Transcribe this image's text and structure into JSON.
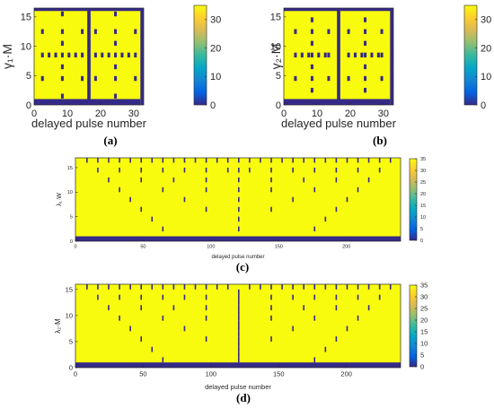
{
  "colors": {
    "low": "#352a87",
    "high": "#f9fb0e",
    "frame": "#262626"
  },
  "colorbar_stops": [
    "#352a87",
    "#0363e1",
    "#1485d4",
    "#06a7c6",
    "#38b99e",
    "#92bf73",
    "#d9ba56",
    "#fcce2e",
    "#f9fb0e"
  ],
  "chart_data": [
    {
      "type": "heatmap",
      "caption": "(a)",
      "xlabel": "delayed pulse number",
      "ylabel": "γ₁·M",
      "xlim": [
        0,
        33
      ],
      "ylim": [
        0,
        16.5
      ],
      "xticks": [
        0,
        10,
        20,
        30
      ],
      "yticks": [
        0,
        5,
        10,
        15
      ],
      "colorbar": {
        "range": [
          0,
          35
        ],
        "ticks": [
          0,
          10,
          20,
          30
        ]
      },
      "grid_size": [
        32,
        16
      ],
      "background_value": 35,
      "mark_value": 0,
      "low_value_columns": [
        16
      ],
      "low_value_rows": [
        0
      ],
      "low_value_cells": [
        [
          2,
          4
        ],
        [
          2,
          8
        ],
        [
          2,
          12
        ],
        [
          4,
          8
        ],
        [
          6,
          8
        ],
        [
          8,
          1
        ],
        [
          8,
          4
        ],
        [
          8,
          6
        ],
        [
          8,
          8
        ],
        [
          8,
          10
        ],
        [
          8,
          12
        ],
        [
          8,
          15
        ],
        [
          10,
          8
        ],
        [
          12,
          8
        ],
        [
          14,
          4
        ],
        [
          14,
          8
        ],
        [
          14,
          12
        ],
        [
          18,
          4
        ],
        [
          18,
          8
        ],
        [
          18,
          12
        ],
        [
          20,
          8
        ],
        [
          22,
          8
        ],
        [
          24,
          1
        ],
        [
          24,
          4
        ],
        [
          24,
          6
        ],
        [
          24,
          8
        ],
        [
          24,
          10
        ],
        [
          24,
          12
        ],
        [
          24,
          15
        ],
        [
          26,
          8
        ],
        [
          28,
          8
        ],
        [
          30,
          4
        ],
        [
          30,
          8
        ],
        [
          30,
          12
        ]
      ]
    },
    {
      "type": "heatmap",
      "caption": "(b)",
      "xlabel": "delayed pulse number",
      "ylabel": "γ₂·M",
      "xlim": [
        0,
        33
      ],
      "ylim": [
        0,
        16.5
      ],
      "xticks": [
        0,
        10,
        20,
        30
      ],
      "yticks": [
        0,
        5,
        10,
        15
      ],
      "colorbar": {
        "range": [
          0,
          35
        ],
        "ticks": [
          0,
          10,
          20,
          30
        ]
      },
      "grid_size": [
        32,
        16
      ],
      "background_value": 35,
      "mark_value": 0,
      "low_value_columns": [
        16
      ],
      "low_value_rows": [
        0
      ],
      "low_value_cells": [
        [
          3,
          4
        ],
        [
          3,
          8
        ],
        [
          3,
          12
        ],
        [
          5,
          8
        ],
        [
          7,
          8
        ],
        [
          8,
          2
        ],
        [
          8,
          4
        ],
        [
          8,
          6
        ],
        [
          8,
          8
        ],
        [
          8,
          10
        ],
        [
          8,
          12
        ],
        [
          8,
          14
        ],
        [
          10,
          8
        ],
        [
          12,
          8
        ],
        [
          13,
          4
        ],
        [
          13,
          8
        ],
        [
          13,
          12
        ],
        [
          19,
          4
        ],
        [
          19,
          8
        ],
        [
          19,
          12
        ],
        [
          21,
          8
        ],
        [
          23,
          8
        ],
        [
          24,
          2
        ],
        [
          24,
          4
        ],
        [
          24,
          6
        ],
        [
          24,
          8
        ],
        [
          24,
          10
        ],
        [
          24,
          12
        ],
        [
          24,
          14
        ],
        [
          26,
          8
        ],
        [
          28,
          8
        ],
        [
          29,
          4
        ],
        [
          29,
          8
        ],
        [
          29,
          12
        ]
      ]
    },
    {
      "type": "heatmap",
      "caption": "(c)",
      "xlabel": "delayed pulse number",
      "ylabel": "λ₁·W",
      "xlim": [
        0,
        240
      ],
      "ylim": [
        0,
        17
      ],
      "xticks": [
        0,
        50,
        100,
        150,
        200
      ],
      "yticks": [
        0,
        5,
        10,
        15
      ],
      "colorbar": {
        "range": [
          0,
          35
        ],
        "ticks": [
          0,
          5,
          10,
          15,
          20,
          25,
          30,
          35
        ]
      },
      "grid_size": [
        240,
        17
      ],
      "background_value": 35,
      "mark_value": 0,
      "low_value_rows": [
        0
      ],
      "low_value_cells": [
        [
          8,
          16
        ],
        [
          16,
          16
        ],
        [
          24,
          16
        ],
        [
          32,
          16
        ],
        [
          40,
          16
        ],
        [
          48,
          16
        ],
        [
          56,
          16
        ],
        [
          64,
          16
        ],
        [
          72,
          16
        ],
        [
          80,
          16
        ],
        [
          88,
          16
        ],
        [
          96,
          16
        ],
        [
          104,
          16
        ],
        [
          112,
          16
        ],
        [
          120,
          16
        ],
        [
          128,
          16
        ],
        [
          136,
          16
        ],
        [
          144,
          16
        ],
        [
          152,
          16
        ],
        [
          160,
          16
        ],
        [
          168,
          16
        ],
        [
          176,
          16
        ],
        [
          184,
          16
        ],
        [
          192,
          16
        ],
        [
          200,
          16
        ],
        [
          208,
          16
        ],
        [
          216,
          16
        ],
        [
          224,
          16
        ],
        [
          232,
          16
        ],
        [
          16,
          14
        ],
        [
          32,
          14
        ],
        [
          48,
          14
        ],
        [
          64,
          14
        ],
        [
          80,
          14
        ],
        [
          96,
          14
        ],
        [
          112,
          14
        ],
        [
          120,
          14
        ],
        [
          128,
          14
        ],
        [
          144,
          14
        ],
        [
          160,
          14
        ],
        [
          176,
          14
        ],
        [
          192,
          14
        ],
        [
          208,
          14
        ],
        [
          224,
          14
        ],
        [
          24,
          12
        ],
        [
          48,
          12
        ],
        [
          72,
          12
        ],
        [
          96,
          12
        ],
        [
          120,
          12
        ],
        [
          144,
          12
        ],
        [
          168,
          12
        ],
        [
          192,
          12
        ],
        [
          216,
          12
        ],
        [
          32,
          10
        ],
        [
          64,
          10
        ],
        [
          96,
          10
        ],
        [
          120,
          10
        ],
        [
          144,
          10
        ],
        [
          176,
          10
        ],
        [
          208,
          10
        ],
        [
          40,
          8
        ],
        [
          80,
          8
        ],
        [
          120,
          8
        ],
        [
          160,
          8
        ],
        [
          200,
          8
        ],
        [
          48,
          6
        ],
        [
          96,
          6
        ],
        [
          120,
          6
        ],
        [
          144,
          6
        ],
        [
          192,
          6
        ],
        [
          56,
          4
        ],
        [
          120,
          4
        ],
        [
          184,
          4
        ],
        [
          64,
          2
        ],
        [
          120,
          2
        ],
        [
          176,
          2
        ]
      ]
    },
    {
      "type": "heatmap",
      "caption": "(d)",
      "xlabel": "delayed pulse number",
      "ylabel": "λ₂·M",
      "xlim": [
        0,
        240
      ],
      "ylim": [
        0,
        16
      ],
      "xticks": [
        0,
        50,
        100,
        150,
        200
      ],
      "yticks": [
        0,
        5,
        10,
        15
      ],
      "colorbar": {
        "range": [
          0,
          35
        ],
        "ticks": [
          0,
          5,
          10,
          15,
          20,
          25,
          30,
          35
        ]
      },
      "grid_size": [
        240,
        16
      ],
      "background_value": 35,
      "mark_value": 0,
      "low_value_rows": [
        0
      ],
      "low_value_cells": [
        [
          8,
          15
        ],
        [
          16,
          15
        ],
        [
          24,
          15
        ],
        [
          32,
          15
        ],
        [
          40,
          15
        ],
        [
          48,
          15
        ],
        [
          56,
          15
        ],
        [
          64,
          15
        ],
        [
          72,
          15
        ],
        [
          80,
          15
        ],
        [
          88,
          15
        ],
        [
          96,
          15
        ],
        [
          104,
          15
        ],
        [
          112,
          15
        ],
        [
          128,
          15
        ],
        [
          136,
          15
        ],
        [
          144,
          15
        ],
        [
          152,
          15
        ],
        [
          160,
          15
        ],
        [
          168,
          15
        ],
        [
          176,
          15
        ],
        [
          184,
          15
        ],
        [
          192,
          15
        ],
        [
          200,
          15
        ],
        [
          208,
          15
        ],
        [
          216,
          15
        ],
        [
          224,
          15
        ],
        [
          232,
          15
        ],
        [
          120,
          14
        ],
        [
          16,
          13
        ],
        [
          32,
          13
        ],
        [
          48,
          13
        ],
        [
          64,
          13
        ],
        [
          80,
          13
        ],
        [
          96,
          13
        ],
        [
          120,
          13
        ],
        [
          144,
          13
        ],
        [
          160,
          13
        ],
        [
          176,
          13
        ],
        [
          192,
          13
        ],
        [
          208,
          13
        ],
        [
          224,
          13
        ],
        [
          120,
          12
        ],
        [
          24,
          11
        ],
        [
          48,
          11
        ],
        [
          72,
          11
        ],
        [
          96,
          11
        ],
        [
          120,
          11
        ],
        [
          144,
          11
        ],
        [
          168,
          11
        ],
        [
          192,
          11
        ],
        [
          216,
          11
        ],
        [
          120,
          10
        ],
        [
          32,
          9
        ],
        [
          64,
          9
        ],
        [
          96,
          9
        ],
        [
          120,
          9
        ],
        [
          144,
          9
        ],
        [
          176,
          9
        ],
        [
          208,
          9
        ],
        [
          120,
          8
        ],
        [
          40,
          7
        ],
        [
          80,
          7
        ],
        [
          120,
          7
        ],
        [
          160,
          7
        ],
        [
          200,
          7
        ],
        [
          120,
          6
        ],
        [
          48,
          5
        ],
        [
          96,
          5
        ],
        [
          120,
          5
        ],
        [
          144,
          5
        ],
        [
          192,
          5
        ],
        [
          120,
          4
        ],
        [
          56,
          3
        ],
        [
          120,
          3
        ],
        [
          184,
          3
        ],
        [
          120,
          2
        ],
        [
          64,
          1
        ],
        [
          120,
          1
        ],
        [
          176,
          1
        ]
      ]
    }
  ]
}
